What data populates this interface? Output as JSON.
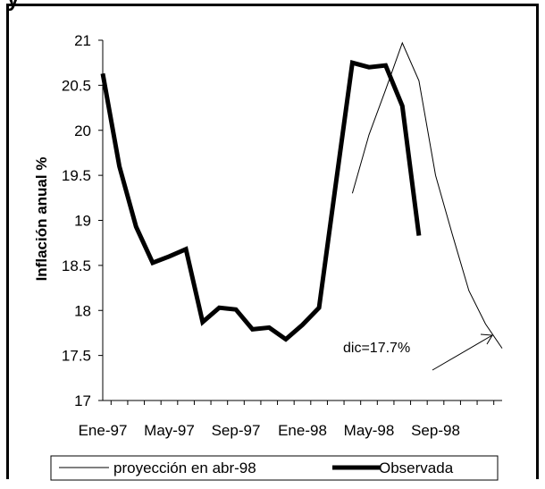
{
  "header": {
    "clipped_text": "y"
  },
  "chart_data": {
    "type": "line",
    "title": "",
    "xlabel": "",
    "ylabel": "Inflación anual %",
    "ylim": [
      17,
      21
    ],
    "yticks": [
      "17",
      "17.5",
      "18",
      "18.5",
      "19",
      "19.5",
      "20",
      "20.5",
      "21"
    ],
    "xtick_labels": [
      "Ene-97",
      "May-97",
      "Sep-97",
      "Ene-98",
      "May-98",
      "Sep-98"
    ],
    "x_count": 25,
    "legend_position": "bottom",
    "series": [
      {
        "name": "proyección en abr-98",
        "style": "thin",
        "x_index": [
          15,
          16,
          17,
          18,
          19,
          20,
          21,
          22,
          23,
          24
        ],
        "values": [
          19.3,
          19.95,
          20.45,
          20.97,
          20.55,
          19.5,
          18.85,
          18.22,
          17.85,
          17.58
        ]
      },
      {
        "name": "Observada",
        "style": "thick",
        "x_index": [
          0,
          1,
          2,
          3,
          4,
          5,
          6,
          7,
          8,
          9,
          10,
          11,
          12,
          13,
          14,
          15,
          16,
          17,
          18,
          19,
          20
        ],
        "values": [
          20.63,
          19.6,
          18.93,
          18.53,
          18.6,
          18.68,
          17.87,
          18.03,
          18.01,
          17.79,
          17.81,
          17.68,
          17.84,
          18.03,
          19.4,
          20.75,
          20.7,
          20.72,
          20.27,
          18.83,
          null
        ]
      }
    ],
    "annotation": {
      "text": "dic=17.7%"
    }
  }
}
